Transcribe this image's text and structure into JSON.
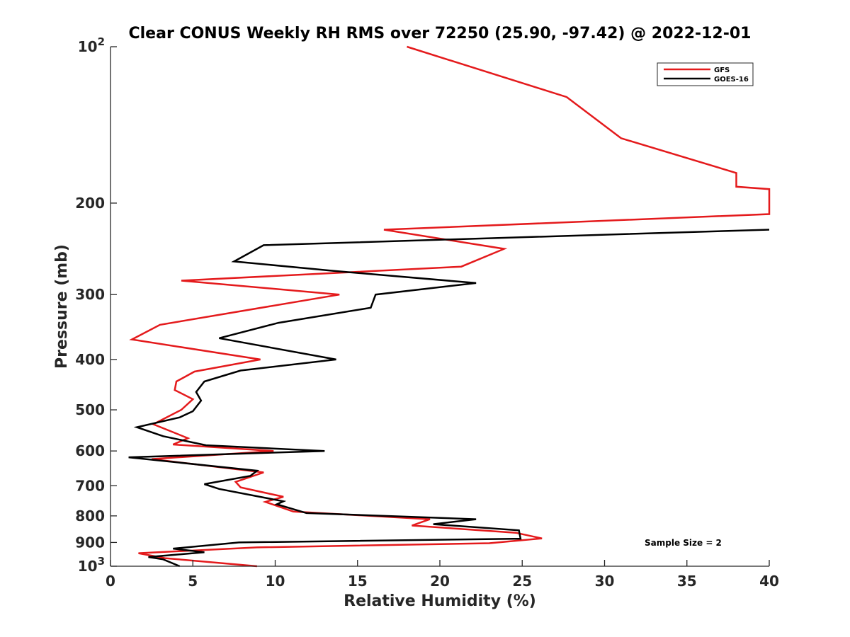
{
  "chart_data": {
    "type": "line",
    "title": "Clear CONUS Weekly RH RMS over 72250 (25.90, -97.42) @ 2022-12-01",
    "xlabel": "Relative Humidity (%)",
    "ylabel": "Pressure (mb)",
    "xlim": [
      0,
      40
    ],
    "ylim": [
      100,
      1000
    ],
    "y_scale": "log",
    "y_reversed": true,
    "grid": false,
    "x_ticks": [
      0,
      5,
      10,
      15,
      20,
      25,
      30,
      35,
      40
    ],
    "x_tick_labels": [
      "0",
      "5",
      "10",
      "15",
      "20",
      "25",
      "30",
      "35",
      "40"
    ],
    "y_ticks": [
      100,
      200,
      300,
      400,
      500,
      600,
      700,
      800,
      900,
      1000
    ],
    "y_tick_labels": [
      "10²",
      "200",
      "300",
      "400",
      "500",
      "600",
      "700",
      "800",
      "900",
      "10³"
    ],
    "legend_position": "top-right",
    "annotation": "Sample Size = 2",
    "series": [
      {
        "name": "GFS",
        "color": "#e41a1c",
        "points": [
          [
            18.0,
            100
          ],
          [
            27.7,
            125
          ],
          [
            31.0,
            150
          ],
          [
            38.0,
            175
          ],
          [
            38.0,
            186
          ],
          [
            40.0,
            188
          ],
          [
            40.0,
            210
          ],
          [
            16.6,
            225
          ],
          [
            23.9,
            245
          ],
          [
            21.3,
            265
          ],
          [
            4.3,
            282
          ],
          [
            13.9,
            300
          ],
          [
            3.0,
            343
          ],
          [
            1.3,
            366
          ],
          [
            9.1,
            400
          ],
          [
            5.1,
            422
          ],
          [
            4.0,
            441
          ],
          [
            3.9,
            458
          ],
          [
            5.0,
            477
          ],
          [
            4.3,
            500
          ],
          [
            2.6,
            533
          ],
          [
            4.7,
            567
          ],
          [
            3.8,
            583
          ],
          [
            9.9,
            600
          ],
          [
            2.5,
            622
          ],
          [
            9.3,
            660
          ],
          [
            7.6,
            688
          ],
          [
            7.9,
            705
          ],
          [
            10.5,
            735
          ],
          [
            9.4,
            752
          ],
          [
            11.1,
            785
          ],
          [
            19.4,
            812
          ],
          [
            18.3,
            835
          ],
          [
            24.6,
            862
          ],
          [
            26.2,
            884
          ],
          [
            23.0,
            903
          ],
          [
            8.9,
            920
          ],
          [
            1.7,
            944
          ],
          [
            3.3,
            965
          ],
          [
            8.9,
            1000
          ]
        ]
      },
      {
        "name": "GOES-16",
        "color": "#000000",
        "points": [
          [
            40.0,
            225
          ],
          [
            9.3,
            241
          ],
          [
            7.5,
            259
          ],
          [
            13.5,
            270
          ],
          [
            22.2,
            285
          ],
          [
            16.1,
            300
          ],
          [
            15.8,
            318
          ],
          [
            10.2,
            340
          ],
          [
            6.6,
            364
          ],
          [
            13.7,
            400
          ],
          [
            7.9,
            420
          ],
          [
            5.7,
            441
          ],
          [
            5.2,
            462
          ],
          [
            5.5,
            480
          ],
          [
            5.0,
            503
          ],
          [
            4.2,
            517
          ],
          [
            1.6,
            540
          ],
          [
            3.2,
            562
          ],
          [
            5.8,
            585
          ],
          [
            13.0,
            600
          ],
          [
            1.1,
            617
          ],
          [
            8.9,
            655
          ],
          [
            8.5,
            670
          ],
          [
            5.7,
            695
          ],
          [
            6.6,
            710
          ],
          [
            10.5,
            750
          ],
          [
            10.1,
            760
          ],
          [
            11.9,
            790
          ],
          [
            22.2,
            812
          ],
          [
            19.6,
            830
          ],
          [
            24.8,
            853
          ],
          [
            24.9,
            885
          ],
          [
            7.8,
            900
          ],
          [
            3.8,
            925
          ],
          [
            5.7,
            940
          ],
          [
            2.3,
            960
          ],
          [
            3.2,
            970
          ],
          [
            4.2,
            1000
          ]
        ]
      }
    ]
  }
}
